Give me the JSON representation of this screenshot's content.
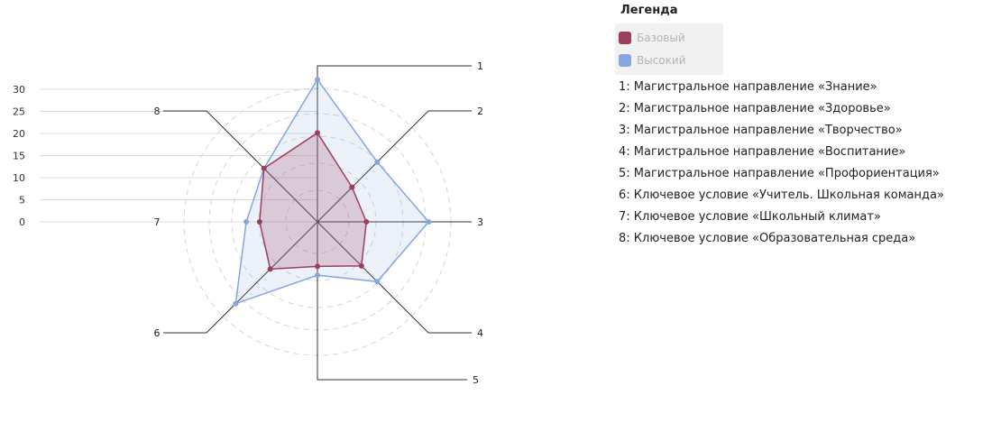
{
  "legend": {
    "title": "Легенда",
    "entries": [
      {
        "name": "Базовый",
        "color": "#9b3f5c"
      },
      {
        "name": "Высокий",
        "color": "#86a6e0"
      }
    ]
  },
  "axis_descriptions": [
    "1: Магистральное направление «Знание»",
    "2: Магистральное направление «Здоровье»",
    "3: Магистральное направление «Творчество»",
    "4: Магистральное направление «Воспитание»",
    "5: Магистральное направление «Профориентация»",
    "6: Ключевое условие «Учитель. Школьная команда»",
    "7: Ключевое условие «Школьный климат»",
    "8: Ключевое условие «Образовательная среда»"
  ],
  "chart_data": {
    "type": "radar",
    "categories": [
      "1",
      "2",
      "3",
      "4",
      "5",
      "6",
      "7",
      "8"
    ],
    "rlim": [
      0,
      30
    ],
    "r_ticks": [
      0,
      5,
      10,
      15,
      20,
      25,
      30
    ],
    "grid": true,
    "legend_position": "top-right",
    "series": [
      {
        "name": "Базовый",
        "color": "#9b3f5c",
        "values": [
          20,
          11,
          11,
          14,
          10,
          15,
          13,
          17
        ]
      },
      {
        "name": "Высокий",
        "color": "#86a6e0",
        "values": [
          32,
          19,
          25,
          19,
          12,
          26,
          16,
          17
        ]
      }
    ]
  }
}
